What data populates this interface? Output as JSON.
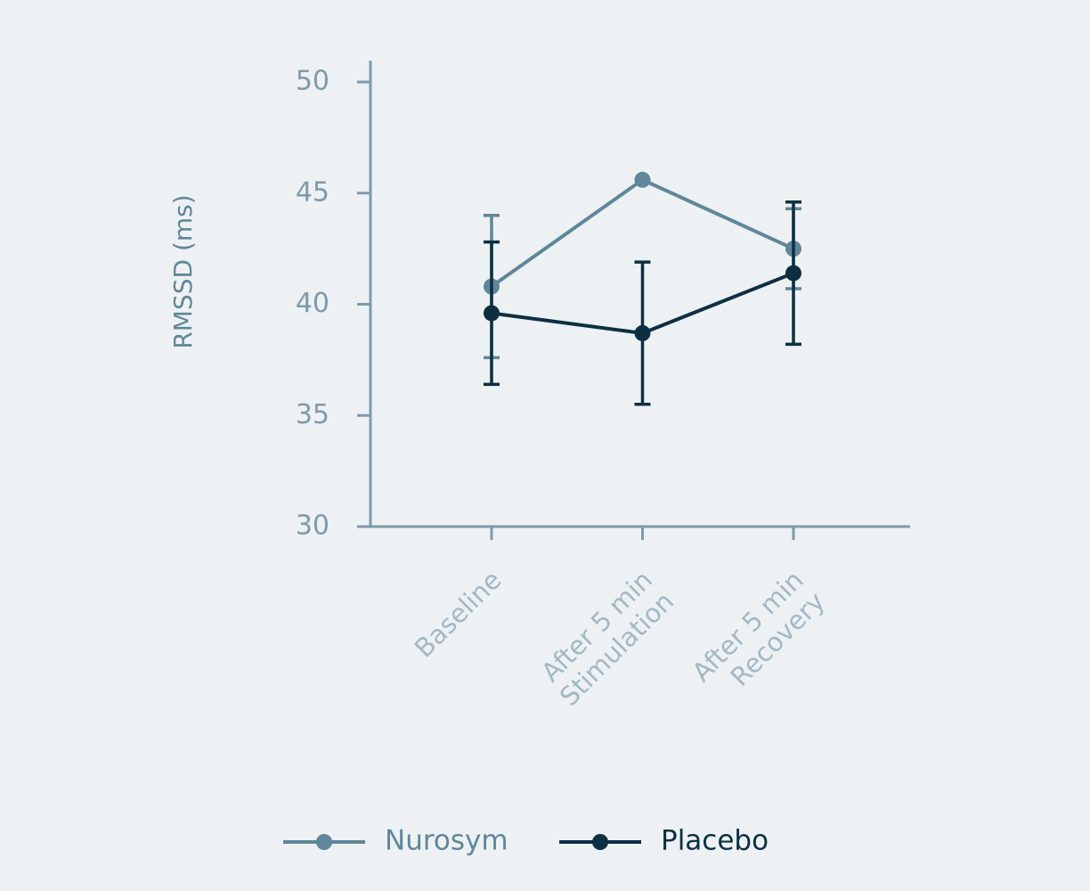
{
  "chart_data": {
    "type": "line",
    "y_label": "RMSSD (ms)",
    "categories": [
      [
        "Baseline"
      ],
      [
        "After 5 min",
        "Stimulation"
      ],
      [
        "After 5 min",
        "Recovery"
      ]
    ],
    "series": [
      {
        "name": "Nurosym",
        "color": "#5f8799",
        "values": [
          40.8,
          45.6,
          42.5
        ],
        "errors": [
          3.2,
          null,
          1.8
        ]
      },
      {
        "name": "Placebo",
        "color": "#0d2f42",
        "values": [
          39.6,
          38.7,
          41.4
        ],
        "errors": [
          3.2,
          3.2,
          3.2
        ]
      }
    ],
    "ylim": [
      30,
      50
    ],
    "yticks": [
      30,
      35,
      40,
      45,
      50
    ],
    "grid": false,
    "legend": "bottom"
  }
}
